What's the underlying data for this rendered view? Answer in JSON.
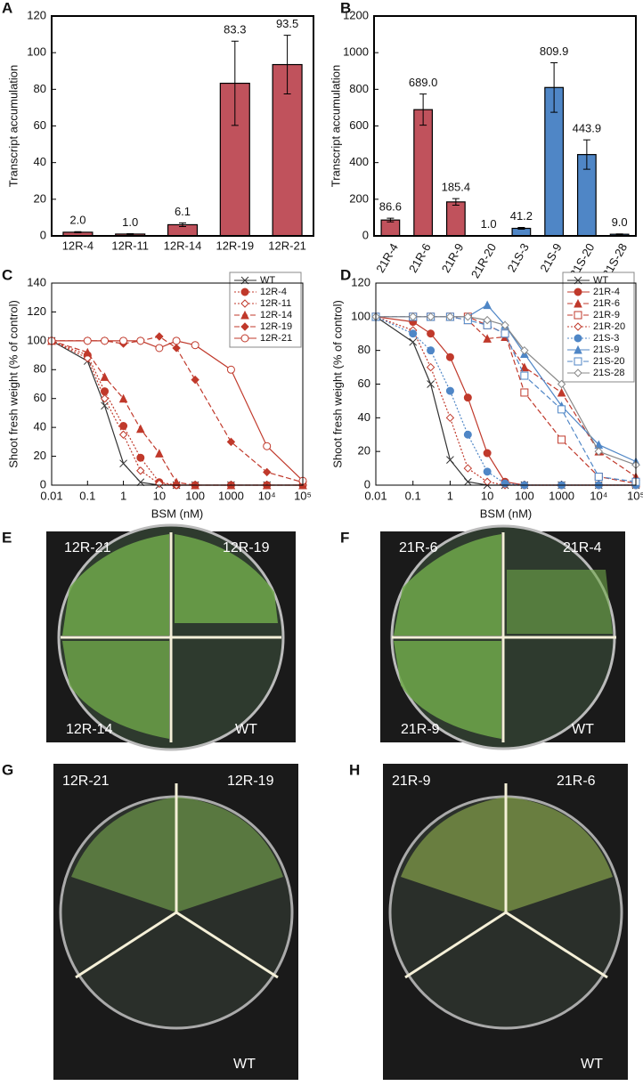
{
  "chart_data": [
    {
      "type": "bar",
      "panel": "A",
      "ylabel": "Transcript accumulation",
      "categories": [
        "12R-4",
        "12R-11",
        "12R-14",
        "12R-19",
        "12R-21"
      ],
      "values": [
        2.0,
        1.0,
        6.1,
        83.3,
        93.5
      ],
      "value_labels": [
        "2.0",
        "1.0",
        "6.1",
        "83.3",
        "93.5"
      ],
      "errors": [
        0.3,
        0.2,
        1,
        23,
        16
      ],
      "colors": [
        "#c0525c",
        "#c0525c",
        "#c0525c",
        "#c0525c",
        "#c0525c"
      ],
      "ylim": [
        0,
        120
      ],
      "yticks": [
        0,
        20,
        40,
        60,
        80,
        100,
        120
      ]
    },
    {
      "type": "bar",
      "panel": "B",
      "ylabel": "Transcript accumulation",
      "categories": [
        "21R-4",
        "21R-6",
        "21R-9",
        "21R-20",
        "21S-3",
        "21S-9",
        "21S-20",
        "21S-28"
      ],
      "values": [
        86.6,
        689.0,
        185.4,
        1.0,
        41.2,
        809.9,
        443.9,
        9.0
      ],
      "value_labels": [
        "86.6",
        "689.0",
        "185.4",
        "1.0",
        "41.2",
        "809.9",
        "443.9",
        "9.0"
      ],
      "errors": [
        10,
        85,
        18,
        0.5,
        5,
        135,
        80,
        2
      ],
      "colors": [
        "#c0525c",
        "#c0525c",
        "#c0525c",
        "#c0525c",
        "#4f86c6",
        "#4f86c6",
        "#4f86c6",
        "#4f86c6"
      ],
      "ylim": [
        0,
        1200
      ],
      "yticks": [
        0,
        200,
        400,
        600,
        800,
        1000,
        1200
      ]
    },
    {
      "type": "line",
      "panel": "C",
      "xlabel": "BSM (nM)",
      "ylabel": "Shoot fresh weight (% of control)",
      "log_x": true,
      "legend": "upper right",
      "x": [
        0.01,
        0.1,
        0.3,
        1,
        3,
        10,
        30,
        100,
        1000,
        10000,
        100000
      ],
      "xlim": [
        0.01,
        100000
      ],
      "xticks": [
        0.01,
        0.1,
        1,
        10,
        100,
        1000,
        {
          "value": 10000,
          "label": "10⁴"
        },
        {
          "value": 100000,
          "label": "10⁵"
        }
      ],
      "ylim": [
        0,
        140
      ],
      "yticks": [
        0,
        20,
        40,
        60,
        80,
        100,
        120,
        140
      ],
      "series": [
        {
          "name": "WT",
          "color": "#333333",
          "marker": "x",
          "linestyle": "solid",
          "values": [
            100,
            86,
            55,
            15,
            2,
            0,
            0,
            0,
            0,
            0,
            0
          ]
        },
        {
          "name": "12R-4",
          "color": "#c0392b",
          "marker": "circle",
          "linestyle": "dotted",
          "values": [
            100,
            90,
            65,
            41,
            19,
            2,
            0,
            0,
            0,
            0,
            0
          ]
        },
        {
          "name": "12R-11",
          "color": "#c0392b",
          "marker": "open-diamond",
          "linestyle": "dotted",
          "values": [
            100,
            88,
            60,
            35,
            10,
            1,
            0,
            0,
            0,
            0,
            0
          ]
        },
        {
          "name": "12R-14",
          "color": "#c0392b",
          "marker": "triangle",
          "linestyle": "dashed",
          "values": [
            100,
            92,
            75,
            60,
            39,
            22,
            2,
            0,
            0,
            0,
            0
          ]
        },
        {
          "name": "12R-19",
          "color": "#c0392b",
          "marker": "diamond",
          "linestyle": "dashed",
          "values": [
            100,
            100,
            100,
            98,
            100,
            103,
            95,
            73,
            30,
            9,
            2
          ]
        },
        {
          "name": "12R-21",
          "color": "#c0392b",
          "marker": "open-circle",
          "linestyle": "solid",
          "values": [
            100,
            100,
            100,
            100,
            100,
            95,
            100,
            97,
            80,
            27,
            3
          ]
        }
      ]
    },
    {
      "type": "line",
      "panel": "D",
      "xlabel": "BSM (nM)",
      "ylabel": "Shoot fresh weight (% of control)",
      "log_x": true,
      "legend": "upper right",
      "x": [
        0.01,
        0.1,
        0.3,
        1,
        3,
        10,
        30,
        100,
        1000,
        10000,
        100000
      ],
      "xlim": [
        0.01,
        100000
      ],
      "xticks": [
        0.01,
        0.1,
        1,
        10,
        100,
        1000,
        {
          "value": 10000,
          "label": "10⁴"
        },
        {
          "value": 100000,
          "label": "10⁵"
        }
      ],
      "ylim": [
        0,
        120
      ],
      "yticks": [
        0,
        20,
        40,
        60,
        80,
        100,
        120
      ],
      "series": [
        {
          "name": "WT",
          "color": "#333333",
          "marker": "x",
          "linestyle": "solid",
          "values": [
            100,
            85,
            60,
            15,
            2,
            0,
            0,
            0,
            0,
            0,
            0
          ]
        },
        {
          "name": "21R-4",
          "color": "#c0392b",
          "marker": "circle",
          "linestyle": "solid",
          "values": [
            100,
            97,
            90,
            76,
            52,
            19,
            2,
            0,
            0,
            0,
            0
          ]
        },
        {
          "name": "21R-6",
          "color": "#c0392b",
          "marker": "triangle",
          "linestyle": "dashed",
          "values": [
            100,
            100,
            100,
            100,
            98,
            87,
            88,
            70,
            55,
            20,
            5
          ]
        },
        {
          "name": "21R-9",
          "color": "#c0392b",
          "marker": "open-square",
          "linestyle": "dashed",
          "values": [
            100,
            100,
            100,
            100,
            100,
            95,
            90,
            55,
            27,
            5,
            1
          ]
        },
        {
          "name": "21R-20",
          "color": "#c0392b",
          "marker": "open-diamond",
          "linestyle": "dotted",
          "values": [
            100,
            92,
            70,
            40,
            10,
            2,
            0,
            0,
            0,
            0,
            0
          ]
        },
        {
          "name": "21S-3",
          "color": "#4f86c6",
          "marker": "circle",
          "linestyle": "dotted",
          "values": [
            100,
            90,
            80,
            56,
            30,
            8,
            1,
            0,
            0,
            0,
            0
          ]
        },
        {
          "name": "21S-9",
          "color": "#4f86c6",
          "marker": "triangle",
          "linestyle": "solid",
          "values": [
            100,
            100,
            100,
            100,
            100,
            107,
            95,
            78,
            47,
            24,
            14
          ]
        },
        {
          "name": "21S-20",
          "color": "#4f86c6",
          "marker": "open-square",
          "linestyle": "dashed",
          "values": [
            100,
            100,
            100,
            100,
            98,
            95,
            90,
            65,
            45,
            5,
            2
          ]
        },
        {
          "name": "21S-28",
          "color": "#888888",
          "marker": "open-diamond",
          "linestyle": "solid",
          "values": [
            100,
            100,
            100,
            100,
            100,
            98,
            95,
            80,
            60,
            20,
            12
          ]
        }
      ]
    }
  ],
  "photos": [
    {
      "panel": "E",
      "labels": [
        "12R-21",
        "12R-19",
        "12R-14",
        "WT"
      ]
    },
    {
      "panel": "F",
      "labels": [
        "21R-6",
        "21R-4",
        "21R-9",
        "WT"
      ]
    },
    {
      "panel": "G",
      "labels": [
        "12R-21",
        "12R-19",
        "WT"
      ]
    },
    {
      "panel": "H",
      "labels": [
        "21R-9",
        "21R-6",
        "WT"
      ]
    }
  ]
}
